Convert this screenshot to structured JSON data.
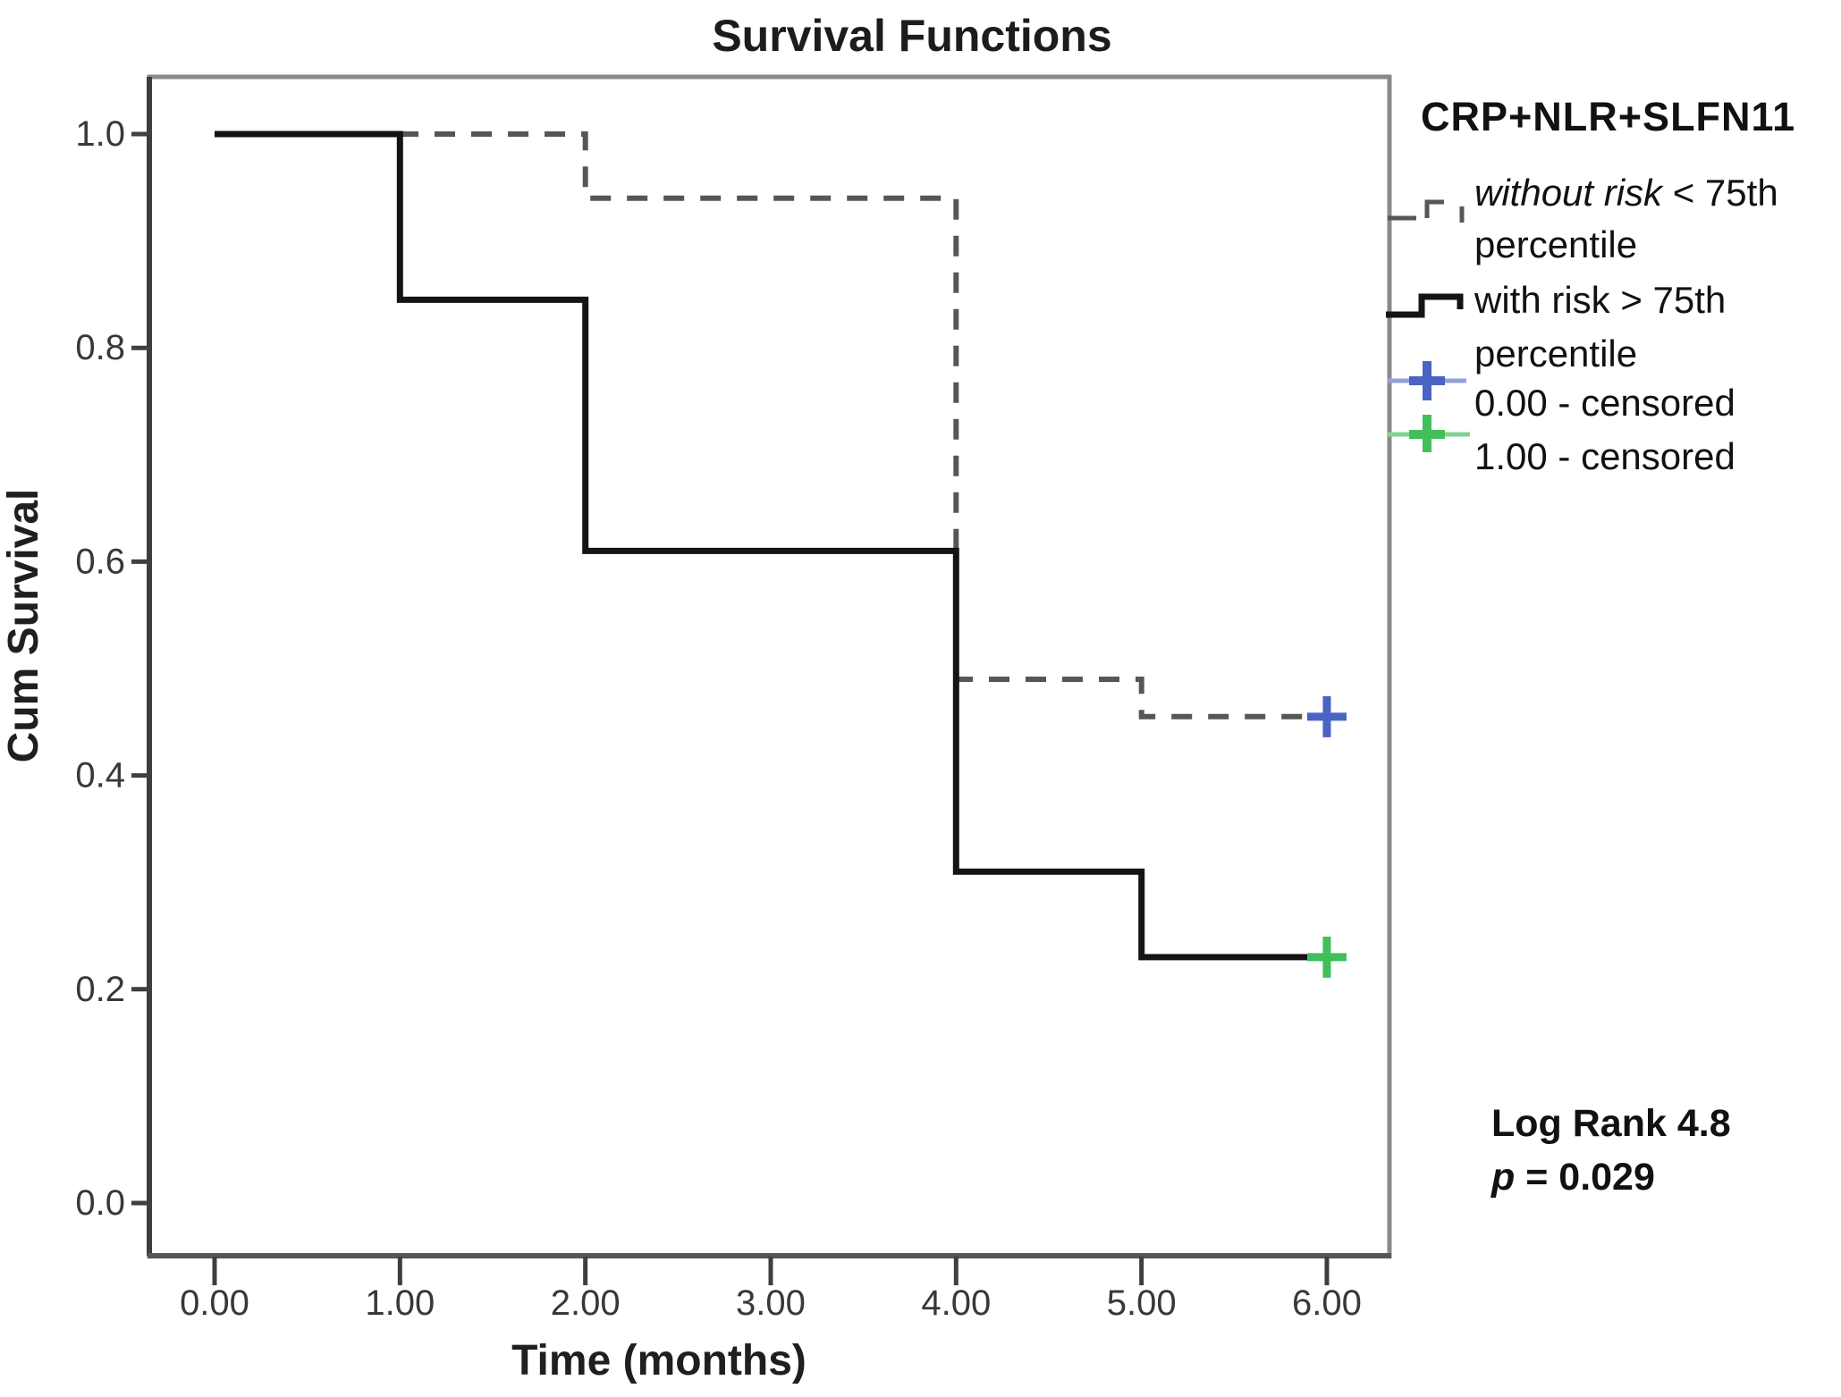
{
  "chart_data": {
    "type": "line",
    "subtype": "kaplan-meier-step",
    "title": "Survival Functions",
    "xlabel": "Time (months)",
    "ylabel": "Cum Survival",
    "xlim": [
      -0.35,
      6.35
    ],
    "ylim": [
      -0.05,
      1.05
    ],
    "grid": false,
    "legend_position": "right",
    "x_ticks": [
      {
        "t": 0,
        "label": "0.00"
      },
      {
        "t": 1,
        "label": "1.00"
      },
      {
        "t": 2,
        "label": "2.00"
      },
      {
        "t": 3,
        "label": "3.00"
      },
      {
        "t": 4,
        "label": "4.00"
      },
      {
        "t": 5,
        "label": "5.00"
      },
      {
        "t": 6,
        "label": "6.00"
      }
    ],
    "y_ticks": [
      {
        "v": 0.0,
        "label": "0.0"
      },
      {
        "v": 0.2,
        "label": "0.2"
      },
      {
        "v": 0.4,
        "label": "0.4"
      },
      {
        "v": 0.6,
        "label": "0.6"
      },
      {
        "v": 0.8,
        "label": "0.8"
      },
      {
        "v": 1.0,
        "label": "1.0"
      }
    ],
    "series": [
      {
        "name": "without risk < 75th percentile",
        "group_code": "0.00",
        "line_style": "dashed",
        "color": "#565656",
        "steps": [
          [
            0,
            1.0
          ],
          [
            2,
            1.0
          ],
          [
            2,
            0.94
          ],
          [
            4,
            0.94
          ],
          [
            4,
            0.49
          ],
          [
            5,
            0.49
          ],
          [
            5,
            0.455
          ],
          [
            6,
            0.455
          ]
        ],
        "censored_points": [
          [
            6,
            0.455
          ]
        ],
        "censor_color": "#4a64c4"
      },
      {
        "name": "with risk > 75th percentile",
        "group_code": "1.00",
        "line_style": "solid",
        "color": "#141414",
        "steps": [
          [
            0,
            1.0
          ],
          [
            1,
            1.0
          ],
          [
            1,
            0.845
          ],
          [
            2,
            0.845
          ],
          [
            2,
            0.61
          ],
          [
            4,
            0.61
          ],
          [
            4,
            0.31
          ],
          [
            5,
            0.31
          ],
          [
            5,
            0.23
          ],
          [
            6,
            0.23
          ]
        ],
        "censored_points": [
          [
            6,
            0.23
          ]
        ],
        "censor_color": "#41bf5b"
      }
    ],
    "legend": {
      "title": "CRP+NLR+SLFN11",
      "item1_line1_italic": "without risk",
      "item1_line1_rest": " < 75th",
      "item1_line2": "percentile",
      "item2_line1": "with risk > 75th",
      "item2_line2": "percentile",
      "item3": "0.00 - censored",
      "item4": "1.00 - censored"
    },
    "annotation": {
      "line1": "Log Rank 4.8",
      "line2_italic": "p",
      "line2_rest": " = 0.029"
    }
  }
}
